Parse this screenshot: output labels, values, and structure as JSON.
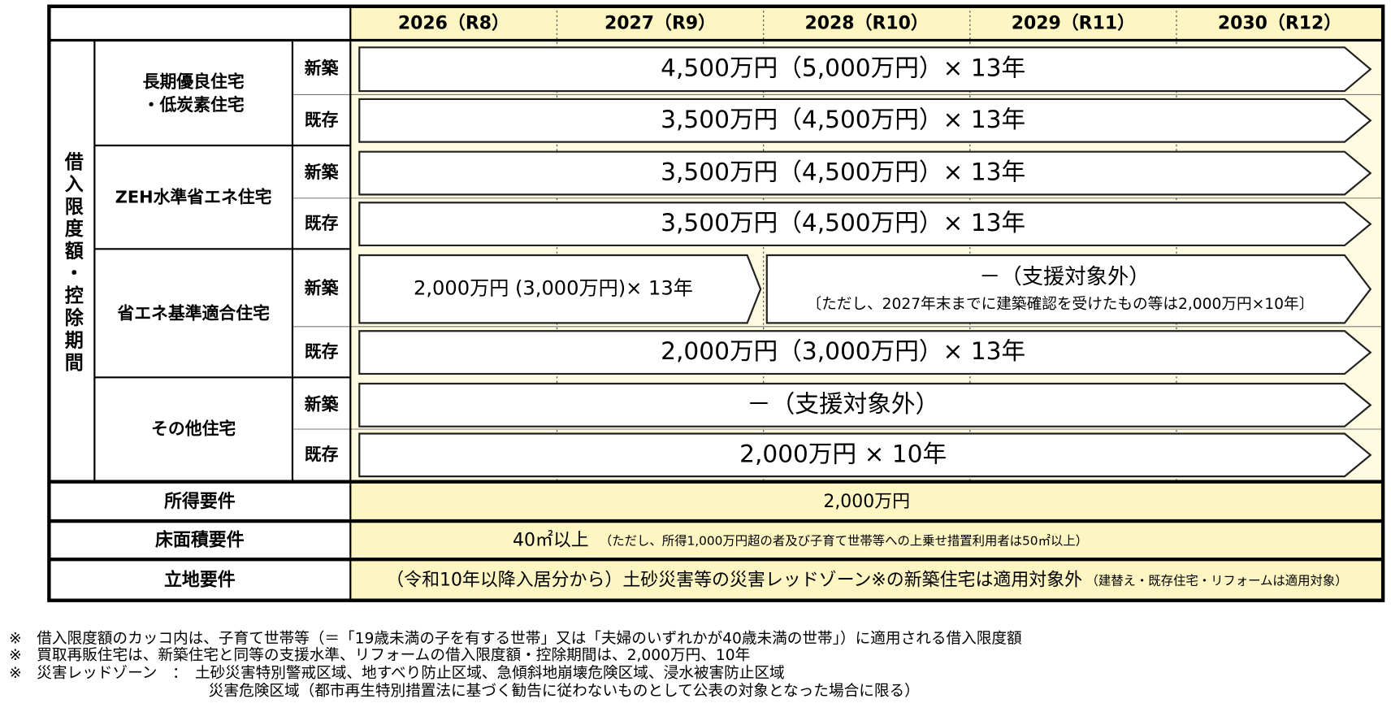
{
  "header": {
    "columns": [
      "2026（R8）",
      "2027（R9）",
      "2028（R10）",
      "2029（R11）",
      "2030（R12）"
    ]
  },
  "side_label": "借入限度額・控除期間",
  "groups": [
    {
      "name": [
        "長期優良住宅",
        "・低炭素住宅"
      ],
      "rows": [
        {
          "kind": "新築",
          "arrows": [
            {
              "text": "4,500万円（5,000万円）× 13年"
            }
          ]
        },
        {
          "kind": "既存",
          "arrows": [
            {
              "text": "3,500万円（4,500万円）× 13年"
            }
          ]
        }
      ]
    },
    {
      "name": [
        "ZEH水準省エネ住宅"
      ],
      "rows": [
        {
          "kind": "新築",
          "arrows": [
            {
              "text": "3,500万円（4,500万円）× 13年"
            }
          ]
        },
        {
          "kind": "既存",
          "arrows": [
            {
              "text": "3,500万円（4,500万円）× 13年"
            }
          ]
        }
      ]
    },
    {
      "name": [
        "省エネ基準適合住宅"
      ],
      "rows": [
        {
          "kind": "新築",
          "arrows": [
            {
              "text": "2,000万円 (3,000万円)× 13年"
            },
            {
              "text": "－（支援対象外）",
              "sub": "〔ただし、2027年末までに建築確認を受けたもの等は2,000万円×10年〕"
            }
          ]
        },
        {
          "kind": "既存",
          "arrows": [
            {
              "text": "2,000万円（3,000万円）× 13年"
            }
          ]
        }
      ]
    },
    {
      "name": [
        "その他住宅"
      ],
      "rows": [
        {
          "kind": "新築",
          "arrows": [
            {
              "text": "－（支援対象外）"
            }
          ]
        },
        {
          "kind": "既存",
          "arrows": [
            {
              "text": "2,000万円 × 10年"
            }
          ]
        }
      ]
    }
  ],
  "requirements": [
    {
      "label": "所得要件",
      "value": "2,000万円"
    },
    {
      "label": "床面積要件",
      "value": "40㎡以上",
      "note": "（ただし、所得1,000万円超の者及び子育て世帯等への上乗せ措置利用者は50㎡以上）"
    },
    {
      "label": "立地要件",
      "value": "（令和10年以降入居分から）土砂災害等の災害レッドゾーン※の新築住宅は適用対象外",
      "note": "（建替え・既存住宅・リフォームは適用対象）"
    }
  ],
  "footnotes": [
    "※　借入限度額のカッコ内は、子育て世帯等（＝「19歳未満の子を有する世帯」又は「夫婦のいずれかが40歳未満の世帯」）に適用される借入限度額",
    "※　買取再販住宅は、新築住宅と同等の支援水準、リフォームの借入限度額・控除期間は、2,000万円、10年",
    "※　災害レッドゾーン　：　土砂災害特別警戒区域、地すべり防止区域、急傾斜地崩壊危険区域、浸水被害防止区域",
    "災害危険区域（都市再生特別措置法に基づく勧告に従わないものとして公表の対象となった場合に限る）"
  ]
}
